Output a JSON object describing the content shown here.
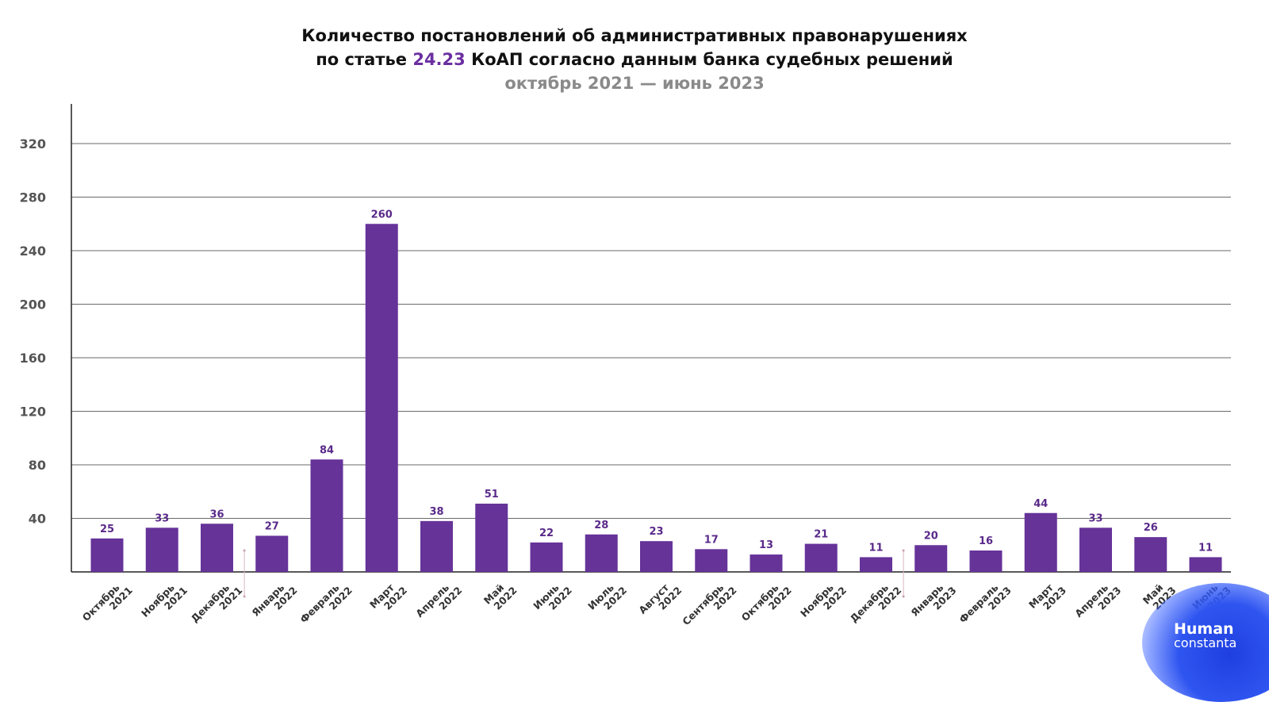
{
  "title": {
    "line1": "Количество постановлений об административных правонарушениях",
    "line2_before": "по статье ",
    "line2_accent": "24.23",
    "line2_after": " КоАП согласно данным банка судебных решений",
    "subtitle": "октябрь 2021 — июнь 2023"
  },
  "logo": {
    "line1": "Human",
    "line2": "constanta"
  },
  "colors": {
    "bar": "#663399",
    "label": "#5a2a8a",
    "accent": "#6b2fa0",
    "grid": "#555555",
    "subtitle": "#8a8a8a"
  },
  "chart_data": {
    "type": "bar",
    "categories": [
      [
        "Октябрь",
        "2021"
      ],
      [
        "Ноябрь",
        "2021"
      ],
      [
        "Декабрь",
        "2021"
      ],
      [
        "Январь",
        "2022"
      ],
      [
        "Февраль",
        "2022"
      ],
      [
        "Март",
        "2022"
      ],
      [
        "Апрель",
        "2022"
      ],
      [
        "Май",
        "2022"
      ],
      [
        "Июнь",
        "2022"
      ],
      [
        "Июль",
        "2022"
      ],
      [
        "Август",
        "2022"
      ],
      [
        "Сентябрь",
        "2022"
      ],
      [
        "Октябрь",
        "2022"
      ],
      [
        "Ноябрь",
        "2022"
      ],
      [
        "Декабрь",
        "2022"
      ],
      [
        "Январь",
        "2023"
      ],
      [
        "Февраль",
        "2023"
      ],
      [
        "Март",
        "2023"
      ],
      [
        "Апрель",
        "2023"
      ],
      [
        "Май",
        "2023"
      ],
      [
        "Июнь",
        "2023"
      ]
    ],
    "values": [
      25,
      33,
      36,
      27,
      84,
      260,
      38,
      51,
      22,
      28,
      23,
      17,
      13,
      21,
      11,
      20,
      16,
      44,
      33,
      26,
      11
    ],
    "ylim": [
      0,
      360
    ],
    "yticks": [
      40,
      80,
      120,
      160,
      200,
      240,
      280,
      320
    ],
    "grid": true,
    "year_dividers_before_index": [
      3,
      15
    ]
  }
}
